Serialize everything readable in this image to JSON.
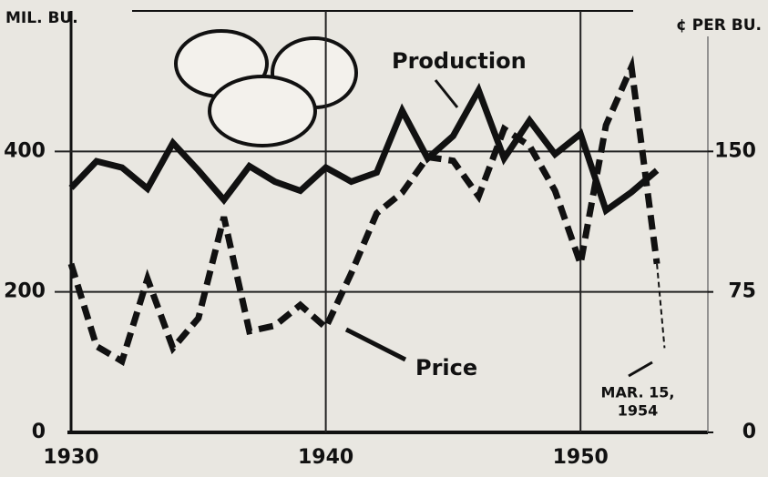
{
  "chart_data": {
    "type": "line",
    "y_label": "MIL. BU.",
    "y2_label": "¢ PER BU.",
    "xlim": [
      1930,
      1955
    ],
    "xticks": [
      1930,
      1940,
      1950
    ],
    "ylim": [
      0,
      600
    ],
    "yticks": [
      0,
      200,
      400
    ],
    "y2lim": [
      0,
      225
    ],
    "y2ticks": [
      0,
      75,
      150
    ],
    "grid": true,
    "series": [
      {
        "name": "Production",
        "color": "#111111",
        "style": "solid",
        "x": [
          1930,
          1931,
          1932,
          1933,
          1934,
          1935,
          1936,
          1937,
          1938,
          1939,
          1940,
          1941,
          1942,
          1943,
          1944,
          1945,
          1946,
          1947,
          1948,
          1949,
          1950,
          1951,
          1952,
          1953
        ],
        "values": [
          348,
          386,
          377,
          347,
          412,
          373,
          331,
          379,
          357,
          344,
          377,
          357,
          370,
          458,
          390,
          422,
          487,
          390,
          444,
          396,
          425,
          316,
          342,
          373
        ]
      },
      {
        "name": "Price",
        "color": "#111111",
        "style": "dashed",
        "axis": "y2",
        "x": [
          1930,
          1931,
          1932,
          1933,
          1934,
          1935,
          1936,
          1937,
          1938,
          1939,
          1940,
          1941,
          1942,
          1943,
          1944,
          1945,
          1946,
          1947,
          1948,
          1949,
          1950,
          1951,
          1952,
          1953,
          1953.3
        ],
        "values": [
          90,
          46,
          38,
          82,
          45,
          61,
          115,
          54,
          57,
          68,
          56,
          85,
          117,
          128,
          147,
          145,
          126,
          162,
          153,
          129,
          90,
          164,
          195,
          90,
          45
        ]
      }
    ],
    "annotation": [
      "MAR. 15,",
      "1954"
    ]
  }
}
